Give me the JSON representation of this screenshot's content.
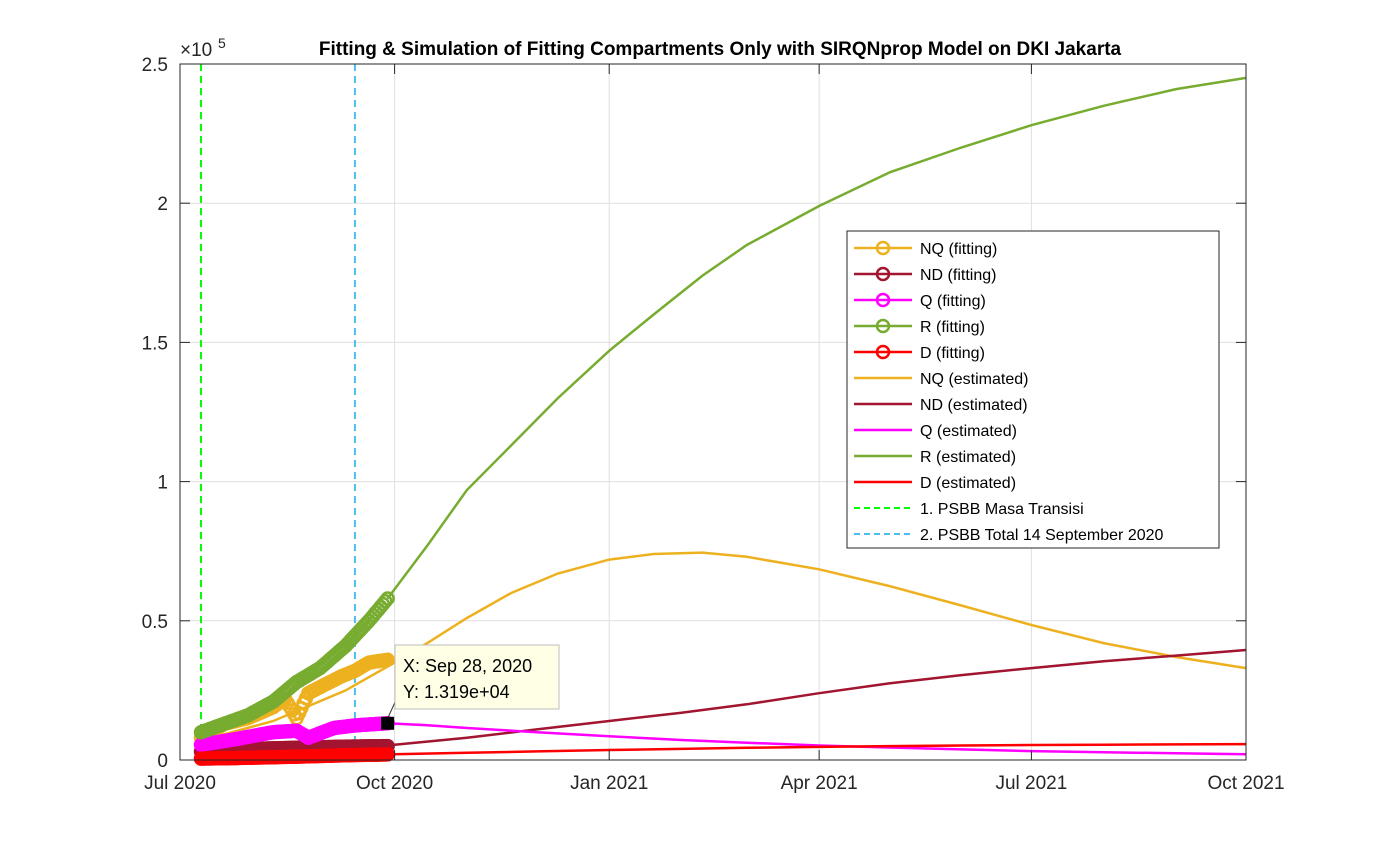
{
  "chart_data": {
    "type": "line",
    "title": "Fitting & Simulation of Fitting Compartments Only with SIRQNprop Model on DKI Jakarta",
    "exponent_label": "×10",
    "exponent_value": "5",
    "x_ticks": [
      "Jul 2020",
      "Oct 2020",
      "Jan 2021",
      "Apr 2021",
      "Jul 2021",
      "Oct 2021"
    ],
    "y_ticks": [
      "0",
      "0.5",
      "1",
      "1.5",
      "2",
      "2.5"
    ],
    "xlim": [
      "2020-07-01",
      "2021-10-01"
    ],
    "ylim": [
      0,
      250000
    ],
    "grid": true,
    "legend_position": "inside-right",
    "fitting_series": [
      {
        "name": "NQ (fitting)",
        "color": "#EDB120",
        "x": [
          "2020-07-10",
          "2020-07-20",
          "2020-07-30",
          "2020-08-10",
          "2020-08-15",
          "2020-08-20",
          "2020-08-25",
          "2020-09-01",
          "2020-09-08",
          "2020-09-14",
          "2020-09-20",
          "2020-09-28"
        ],
        "y": [
          8000,
          13000,
          15000,
          19000,
          22000,
          15000,
          24000,
          27000,
          30000,
          32000,
          35000,
          36000
        ]
      },
      {
        "name": "ND (fitting)",
        "color": "#A2142F",
        "x": [
          "2020-07-10",
          "2020-07-25",
          "2020-08-10",
          "2020-08-25",
          "2020-09-10",
          "2020-09-28"
        ],
        "y": [
          3000,
          3800,
          4200,
          4500,
          4800,
          5000
        ]
      },
      {
        "name": "Q (fitting)",
        "color": "#FF00FF",
        "x": [
          "2020-07-10",
          "2020-07-25",
          "2020-08-10",
          "2020-08-20",
          "2020-08-25",
          "2020-09-05",
          "2020-09-15",
          "2020-09-28"
        ],
        "y": [
          5500,
          7500,
          10000,
          10500,
          8000,
          11500,
          12500,
          13190
        ]
      },
      {
        "name": "R (fitting)",
        "color": "#77AC30",
        "x": [
          "2020-07-10",
          "2020-07-20",
          "2020-07-30",
          "2020-08-10",
          "2020-08-20",
          "2020-08-30",
          "2020-09-10",
          "2020-09-20",
          "2020-09-28"
        ],
        "y": [
          10000,
          13000,
          16000,
          21000,
          28000,
          33000,
          41000,
          50000,
          58000
        ]
      },
      {
        "name": "D (fitting)",
        "color": "#FF0000",
        "x": [
          "2020-07-10",
          "2020-07-25",
          "2020-08-10",
          "2020-08-25",
          "2020-09-10",
          "2020-09-28"
        ],
        "y": [
          500,
          700,
          1000,
          1300,
          1700,
          2000
        ]
      }
    ],
    "estimated_series": [
      {
        "name": "NQ (estimated)",
        "color": "#EDB120",
        "x": [
          "2020-07-10",
          "2020-08-10",
          "2020-09-10",
          "2020-10-01",
          "2020-10-15",
          "2020-11-01",
          "2020-11-20",
          "2020-12-10",
          "2021-01-01",
          "2021-01-20",
          "2021-02-10",
          "2021-03-01",
          "2021-04-01",
          "2021-05-01",
          "2021-06-01",
          "2021-07-01",
          "2021-08-01",
          "2021-09-01",
          "2021-10-01"
        ],
        "y": [
          7000,
          14000,
          25000,
          35000,
          42000,
          51000,
          60000,
          67000,
          72000,
          74000,
          74500,
          73000,
          68500,
          62500,
          55500,
          48500,
          42000,
          37000,
          33000
        ]
      },
      {
        "name": "ND (estimated)",
        "color": "#A2142F",
        "x": [
          "2020-07-10",
          "2020-08-10",
          "2020-09-10",
          "2020-10-01",
          "2020-11-01",
          "2020-12-01",
          "2021-01-01",
          "2021-02-01",
          "2021-03-01",
          "2021-04-01",
          "2021-05-01",
          "2021-06-01",
          "2021-07-01",
          "2021-08-01",
          "2021-09-01",
          "2021-10-01"
        ],
        "y": [
          2500,
          3500,
          4500,
          5500,
          8000,
          11000,
          14000,
          17000,
          20000,
          24000,
          27500,
          30500,
          33000,
          35500,
          37500,
          39500
        ]
      },
      {
        "name": "Q (estimated)",
        "color": "#FF00FF",
        "x": [
          "2020-09-28",
          "2020-10-15",
          "2020-11-01",
          "2020-12-01",
          "2021-01-01",
          "2021-02-01",
          "2021-03-01",
          "2021-04-01",
          "2021-05-01",
          "2021-06-01",
          "2021-07-01",
          "2021-08-01",
          "2021-09-01",
          "2021-10-01"
        ],
        "y": [
          13190,
          12500,
          11500,
          10000,
          8500,
          7200,
          6200,
          5200,
          4500,
          3800,
          3200,
          2800,
          2400,
          2100
        ]
      },
      {
        "name": "R (estimated)",
        "color": "#77AC30",
        "x": [
          "2020-09-28",
          "2020-10-15",
          "2020-11-01",
          "2020-11-20",
          "2020-12-10",
          "2021-01-01",
          "2021-01-20",
          "2021-02-10",
          "2021-03-01",
          "2021-04-01",
          "2021-05-01",
          "2021-06-01",
          "2021-07-01",
          "2021-08-01",
          "2021-09-01",
          "2021-10-01"
        ],
        "y": [
          58000,
          77000,
          97000,
          113000,
          130000,
          147000,
          160000,
          174000,
          185000,
          199000,
          211000,
          220000,
          228000,
          235000,
          241000,
          245000
        ]
      },
      {
        "name": "D (estimated)",
        "color": "#FF0000",
        "x": [
          "2020-09-28",
          "2020-11-01",
          "2020-12-01",
          "2021-01-01",
          "2021-02-01",
          "2021-03-01",
          "2021-04-01",
          "2021-05-01",
          "2021-06-01",
          "2021-07-01",
          "2021-08-01",
          "2021-09-01",
          "2021-10-01"
        ],
        "y": [
          2000,
          2600,
          3100,
          3600,
          4000,
          4400,
          4700,
          5000,
          5200,
          5400,
          5500,
          5600,
          5700
        ]
      }
    ],
    "reference_lines": [
      {
        "name": "1. PSBB Masa Transisi",
        "color": "#00FF00",
        "x": "2020-07-10"
      },
      {
        "name": "2. PSBB Total 14 September 2020",
        "color": "#4DBEEE",
        "x": "2020-09-14"
      }
    ],
    "datatip": {
      "x_text": "X: Sep 28, 2020",
      "y_text": "Y: 1.319e+04",
      "x": "2020-09-28",
      "y": 13190
    }
  }
}
